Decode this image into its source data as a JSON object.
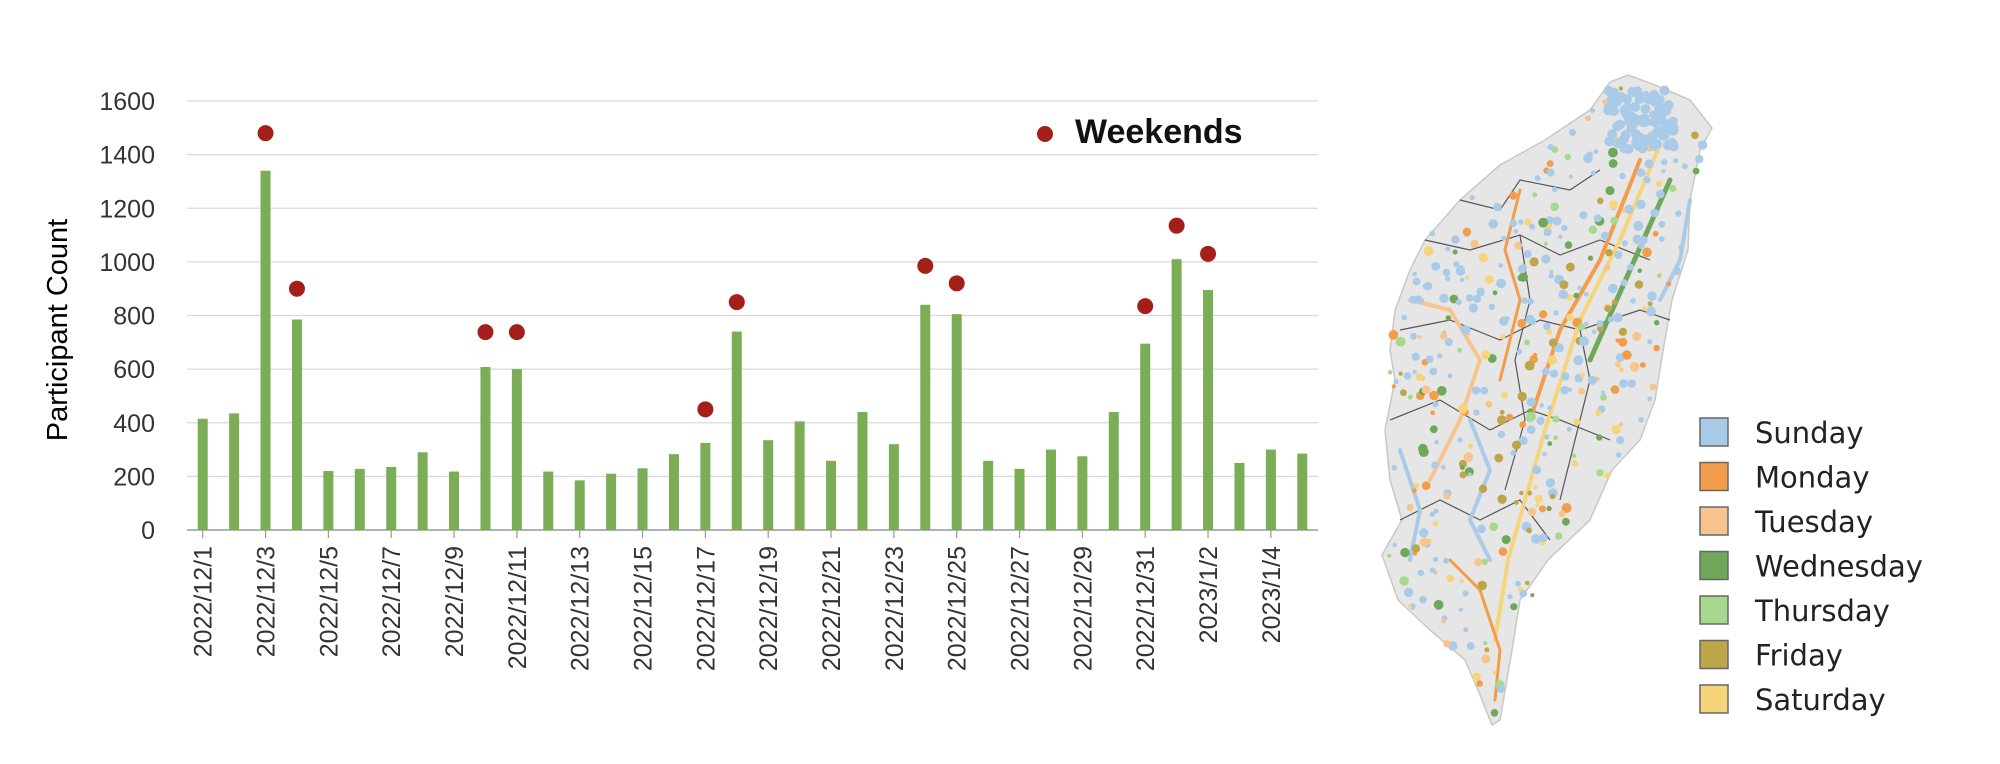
{
  "chart_data": {
    "type": "bar",
    "ylabel": "Participant Count",
    "ylim": [
      0,
      1600
    ],
    "yticks": [
      "0",
      "200",
      "400",
      "600",
      "800",
      "1000",
      "1200",
      "1400",
      "1600"
    ],
    "grid": true,
    "categories": [
      "2022/12/1",
      "2022/12/2",
      "2022/12/3",
      "2022/12/4",
      "2022/12/5",
      "2022/12/6",
      "2022/12/7",
      "2022/12/8",
      "2022/12/9",
      "2022/12/10",
      "2022/12/11",
      "2022/12/12",
      "2022/12/13",
      "2022/12/14",
      "2022/12/15",
      "2022/12/16",
      "2022/12/17",
      "2022/12/18",
      "2022/12/19",
      "2022/12/20",
      "2022/12/21",
      "2022/12/22",
      "2022/12/23",
      "2022/12/24",
      "2022/12/25",
      "2022/12/26",
      "2022/12/27",
      "2022/12/28",
      "2022/12/29",
      "2022/12/30",
      "2022/12/31",
      "2023/1/1",
      "2023/1/2",
      "2023/1/3",
      "2023/1/4",
      "2023/1/5"
    ],
    "tick_labels": [
      "2022/12/1",
      "2022/12/3",
      "2022/12/5",
      "2022/12/7",
      "2022/12/9",
      "2022/12/11",
      "2022/12/13",
      "2022/12/15",
      "2022/12/17",
      "2022/12/19",
      "2022/12/21",
      "2022/12/23",
      "2022/12/25",
      "2022/12/27",
      "2022/12/29",
      "2022/12/31",
      "2023/1/2",
      "2023/1/4"
    ],
    "values": [
      415,
      435,
      1340,
      785,
      220,
      228,
      235,
      290,
      218,
      608,
      600,
      218,
      185,
      210,
      230,
      283,
      325,
      740,
      335,
      405,
      258,
      440,
      320,
      840,
      805,
      258,
      228,
      300,
      275,
      440,
      695,
      1010,
      895,
      250,
      300,
      285
    ],
    "bar_color": "#7aad55",
    "weekend_series": {
      "name": "Weekends",
      "color": "#a51f1a",
      "points": [
        {
          "x": "2022/12/3",
          "y": 1480
        },
        {
          "x": "2022/12/4",
          "y": 900
        },
        {
          "x": "2022/12/10",
          "y": 738
        },
        {
          "x": "2022/12/11",
          "y": 738
        },
        {
          "x": "2022/12/17",
          "y": 450
        },
        {
          "x": "2022/12/18",
          "y": 850
        },
        {
          "x": "2022/12/24",
          "y": 985
        },
        {
          "x": "2022/12/25",
          "y": 920
        },
        {
          "x": "2022/12/31",
          "y": 835
        },
        {
          "x": "2023/1/1",
          "y": 1135
        },
        {
          "x": "2023/1/2",
          "y": 1030
        }
      ]
    },
    "legend_position": "top-right"
  },
  "map": {
    "legend": [
      {
        "label": "Sunday",
        "color": "#a9cbe8"
      },
      {
        "label": "Monday",
        "color": "#f29d4a"
      },
      {
        "label": "Tuesday",
        "color": "#f6c48c"
      },
      {
        "label": "Wednesday",
        "color": "#6fa85a"
      },
      {
        "label": "Thursday",
        "color": "#a6d98d"
      },
      {
        "label": "Friday",
        "color": "#bfa54a"
      },
      {
        "label": "Saturday",
        "color": "#f6d57a"
      }
    ]
  }
}
